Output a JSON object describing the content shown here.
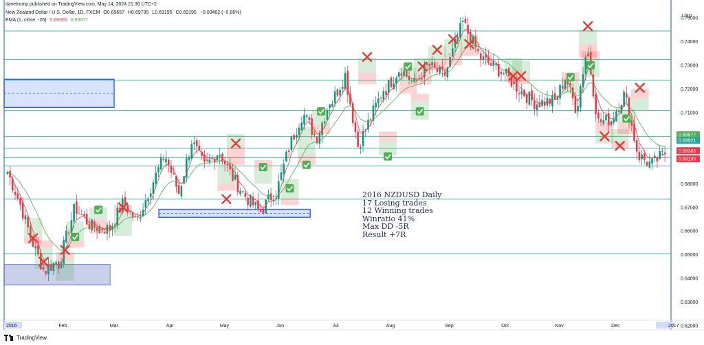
{
  "header": {
    "published": "davetromp published on TradingView.com, May 14, 2024 21:30 UTC+2",
    "symbol": "New Zealand Dollar / U.S. Dollar, 1D, FXCM",
    "ohlc": [
      "O0.69657",
      "H0.69795",
      "L0.69195",
      "C0.69195",
      "−0.00462 (−0.66%)"
    ],
    "indicator": "EMA (1, close, -26)",
    "ema_values": [
      "0.69365",
      "0.69977"
    ]
  },
  "currency": "USD",
  "annotation": {
    "lines": [
      "2016 NZDUSD Daily",
      "17 Losing trades",
      "12 Winning trades",
      "Winratio 41%",
      "Max DD -5R",
      "Result +7R"
    ]
  },
  "footer": {
    "brand": "TradingView"
  },
  "colors": {
    "up": "#089981",
    "down": "#f23645",
    "ema_fast": "#f23645",
    "ema_slow": "#4caf50",
    "level_line": "#26a69a",
    "zone_blue": "#2962ff",
    "zone_gray": "#3f51b5",
    "win": "#4caf50",
    "loss": "#e53935",
    "axis_text": "#131722"
  },
  "chart_data": {
    "type": "candlestick",
    "title": "New Zealand Dollar / U.S. Dollar, 1D, FXCM",
    "x_axis_labels": [
      "2016",
      "Feb",
      "Mar",
      "Apr",
      "May",
      "Jun",
      "Jul",
      "Aug",
      "Sep",
      "Oct",
      "Nov",
      "Dec",
      "2017"
    ],
    "y_axis_ticks": [
      "0.75000",
      "0.74000",
      "0.73000",
      "0.72000",
      "0.71000",
      "0.70000",
      "0.69000",
      "0.68000",
      "0.67000",
      "0.66000",
      "0.65000",
      "0.64000",
      "0.63000",
      "0.62000"
    ],
    "ylim": [
      0.6235,
      0.7535
    ],
    "price_labels": [
      {
        "value": 0.69977,
        "text": "0.69977",
        "color": "#4caf50"
      },
      {
        "value": 0.69921,
        "text": "0.69921",
        "color": "#26a69a"
      },
      {
        "value": 0.69365,
        "text": "0.69365",
        "color": "#f23645"
      },
      {
        "value": 0.69195,
        "text": "0.69195",
        "color": "#f23645"
      }
    ],
    "horizontal_levels": [
      0.7445,
      0.7325,
      0.7237,
      0.711,
      0.7,
      0.695,
      0.691,
      0.6875,
      0.6735,
      0.6505
    ],
    "zones": [
      {
        "x0": 0,
        "x1": 0.165,
        "y0": 0.7241,
        "y1": 0.7122,
        "kind": "blue"
      },
      {
        "x0": 0.232,
        "x1": 0.459,
        "y0": 0.6692,
        "y1": 0.6658,
        "kind": "blue"
      },
      {
        "x0": 0,
        "x1": 0.159,
        "y0": 0.646,
        "y1": 0.6372,
        "kind": "gray"
      }
    ],
    "months": [
      {
        "label": "2016",
        "days": 20,
        "open": 0.685,
        "close": 0.646,
        "path": [
          0.685,
          0.672,
          0.656,
          0.643,
          0.647
        ]
      },
      {
        "label": "Feb",
        "days": 20,
        "open": 0.646,
        "close": 0.661,
        "path": [
          0.646,
          0.67,
          0.662,
          0.661
        ]
      },
      {
        "label": "Mar",
        "days": 22,
        "open": 0.661,
        "close": 0.691,
        "path": [
          0.661,
          0.672,
          0.664,
          0.678,
          0.691
        ]
      },
      {
        "label": "Apr",
        "days": 21,
        "open": 0.691,
        "close": 0.693,
        "path": [
          0.691,
          0.676,
          0.698,
          0.687,
          0.693
        ]
      },
      {
        "label": "May",
        "days": 22,
        "open": 0.693,
        "close": 0.676,
        "path": [
          0.693,
          0.682,
          0.674,
          0.668,
          0.676
        ]
      },
      {
        "label": "Jun",
        "days": 22,
        "open": 0.676,
        "close": 0.715,
        "path": [
          0.676,
          0.696,
          0.71,
          0.699,
          0.715
        ]
      },
      {
        "label": "Jul",
        "days": 21,
        "open": 0.715,
        "close": 0.72,
        "path": [
          0.715,
          0.726,
          0.696,
          0.708,
          0.72
        ]
      },
      {
        "label": "Aug",
        "days": 23,
        "open": 0.72,
        "close": 0.726,
        "path": [
          0.72,
          0.729,
          0.722,
          0.73,
          0.726
        ]
      },
      {
        "label": "Sep",
        "days": 22,
        "open": 0.726,
        "close": 0.728,
        "path": [
          0.726,
          0.748,
          0.733,
          0.728
        ]
      },
      {
        "label": "Oct",
        "days": 21,
        "open": 0.728,
        "close": 0.715,
        "path": [
          0.728,
          0.72,
          0.714,
          0.715
        ]
      },
      {
        "label": "Nov",
        "days": 22,
        "open": 0.715,
        "close": 0.707,
        "path": [
          0.715,
          0.725,
          0.711,
          0.738,
          0.706,
          0.707
        ]
      },
      {
        "label": "Dec",
        "days": 22,
        "open": 0.707,
        "close": 0.693,
        "path": [
          0.707,
          0.718,
          0.692,
          0.688,
          0.693
        ]
      }
    ],
    "trades": [
      {
        "x": 0.03,
        "entry": 0.6575,
        "target": 0.6655,
        "stop": 0.6545,
        "result": "loss",
        "marker": 0.657
      },
      {
        "x": 0.046,
        "entry": 0.653,
        "target": 0.644,
        "stop": 0.656,
        "result": "loss",
        "marker": 0.647
      },
      {
        "x": 0.078,
        "entry": 0.648,
        "target": 0.639,
        "stop": 0.651,
        "result": "loss",
        "marker": 0.652
      },
      {
        "x": 0.093,
        "entry": 0.656,
        "target": 0.664,
        "stop": 0.653,
        "result": "win",
        "marker": 0.6575
      },
      {
        "x": 0.128,
        "entry": 0.665,
        "target": 0.67,
        "stop": 0.659,
        "result": "win",
        "marker": 0.669
      },
      {
        "x": 0.165,
        "entry": 0.668,
        "target": 0.658,
        "stop": 0.671,
        "result": "loss",
        "marker": 0.67
      },
      {
        "x": 0.32,
        "entry": 0.68,
        "target": 0.688,
        "stop": 0.677,
        "result": "loss",
        "marker": 0.6735
      },
      {
        "x": 0.334,
        "entry": 0.696,
        "target": 0.701,
        "stop": 0.688,
        "result": "loss",
        "marker": 0.697
      },
      {
        "x": 0.375,
        "entry": 0.686,
        "target": 0.68,
        "stop": 0.69,
        "result": "win",
        "marker": 0.687
      },
      {
        "x": 0.415,
        "entry": 0.674,
        "target": 0.682,
        "stop": 0.671,
        "result": "win",
        "marker": 0.678
      },
      {
        "x": 0.44,
        "entry": 0.692,
        "target": 0.704,
        "stop": 0.688,
        "result": "win",
        "marker": 0.688
      },
      {
        "x": 0.462,
        "entry": 0.705,
        "target": 0.711,
        "stop": 0.701,
        "result": "win",
        "marker": 0.7105
      },
      {
        "x": 0.531,
        "entry": 0.727,
        "target": 0.733,
        "stop": 0.722,
        "result": "loss",
        "marker": 0.7335
      },
      {
        "x": 0.562,
        "entry": 0.698,
        "target": 0.692,
        "stop": 0.702,
        "result": "win",
        "marker": 0.6915
      },
      {
        "x": 0.592,
        "entry": 0.723,
        "target": 0.729,
        "stop": 0.718,
        "result": "win",
        "marker": 0.7295
      },
      {
        "x": 0.61,
        "entry": 0.715,
        "target": 0.707,
        "stop": 0.718,
        "result": "win",
        "marker": 0.7105
      },
      {
        "x": 0.614,
        "entry": 0.727,
        "target": 0.733,
        "stop": 0.722,
        "result": "loss",
        "marker": 0.7295
      },
      {
        "x": 0.636,
        "entry": 0.732,
        "target": 0.738,
        "stop": 0.728,
        "result": "loss",
        "marker": 0.7365
      },
      {
        "x": 0.66,
        "entry": 0.735,
        "target": 0.741,
        "stop": 0.73,
        "result": "loss",
        "marker": 0.741
      },
      {
        "x": 0.684,
        "entry": 0.738,
        "target": 0.743,
        "stop": 0.734,
        "result": "loss",
        "marker": 0.739
      },
      {
        "x": 0.75,
        "entry": 0.728,
        "target": 0.733,
        "stop": 0.723,
        "result": "loss",
        "marker": 0.7255
      },
      {
        "x": 0.762,
        "entry": 0.725,
        "target": 0.732,
        "stop": 0.722,
        "result": "loss",
        "marker": 0.7255
      },
      {
        "x": 0.836,
        "entry": 0.723,
        "target": 0.718,
        "stop": 0.727,
        "result": "win",
        "marker": 0.725
      },
      {
        "x": 0.862,
        "entry": 0.739,
        "target": 0.745,
        "stop": 0.733,
        "result": "loss",
        "marker": 0.7465
      },
      {
        "x": 0.866,
        "entry": 0.733,
        "target": 0.725,
        "stop": 0.736,
        "result": "win",
        "marker": 0.73
      },
      {
        "x": 0.887,
        "entry": 0.702,
        "target": 0.697,
        "stop": 0.706,
        "result": "loss",
        "marker": 0.7
      },
      {
        "x": 0.91,
        "entry": 0.698,
        "target": 0.703,
        "stop": 0.695,
        "result": "loss",
        "marker": 0.696
      },
      {
        "x": 0.92,
        "entry": 0.706,
        "target": 0.711,
        "stop": 0.701,
        "result": "win",
        "marker": 0.7075
      },
      {
        "x": 0.94,
        "entry": 0.716,
        "target": 0.711,
        "stop": 0.72,
        "result": "loss",
        "marker": 0.7205
      }
    ]
  }
}
